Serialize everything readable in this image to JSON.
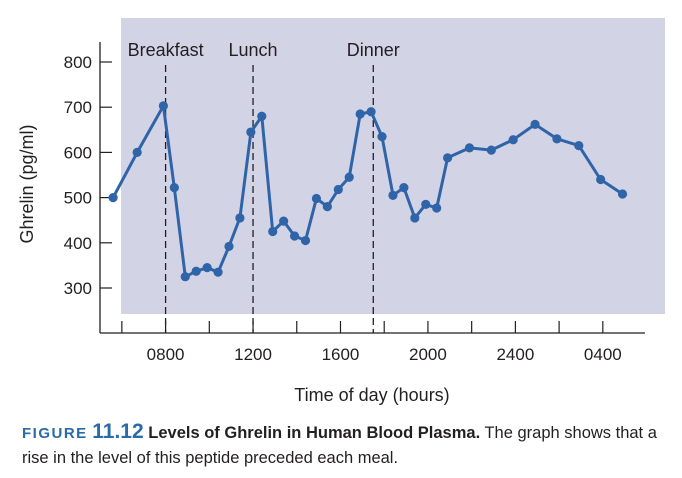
{
  "chart_data": {
    "type": "line",
    "xlabel": "Time of day (hours)",
    "ylabel": "Ghrelin (pg/ml)",
    "x_domain_hours": [
      5.0,
      29.7
    ],
    "ylim": [
      240,
      830
    ],
    "x_ticks": [
      {
        "hour": 8,
        "label": "0800"
      },
      {
        "hour": 12,
        "label": "1200"
      },
      {
        "hour": 16,
        "label": "1600"
      },
      {
        "hour": 20,
        "label": "2000"
      },
      {
        "hour": 24,
        "label": "2400"
      },
      {
        "hour": 28,
        "label": "0400"
      }
    ],
    "y_ticks": [
      300,
      400,
      500,
      600,
      700,
      800
    ],
    "plot_bg_ylim": [
      240,
      850
    ],
    "meals": [
      {
        "label": "Breakfast",
        "hour": 8
      },
      {
        "label": "Lunch",
        "hour": 12
      },
      {
        "label": "Dinner",
        "hour": 17.5
      }
    ],
    "series": [
      {
        "color": "#2f64a9",
        "points": [
          [
            5.6,
            500
          ],
          [
            6.7,
            600
          ],
          [
            7.9,
            703
          ],
          [
            8.4,
            522
          ],
          [
            8.9,
            325
          ],
          [
            9.4,
            337
          ],
          [
            9.9,
            345
          ],
          [
            10.4,
            335
          ],
          [
            10.9,
            392
          ],
          [
            11.4,
            455
          ],
          [
            11.9,
            645
          ],
          [
            12.4,
            680
          ],
          [
            12.9,
            425
          ],
          [
            13.4,
            448
          ],
          [
            13.9,
            415
          ],
          [
            14.4,
            405
          ],
          [
            14.9,
            498
          ],
          [
            15.4,
            480
          ],
          [
            15.9,
            518
          ],
          [
            16.4,
            545
          ],
          [
            16.9,
            685
          ],
          [
            17.4,
            690
          ],
          [
            17.9,
            635
          ],
          [
            18.4,
            505
          ],
          [
            18.9,
            522
          ],
          [
            19.4,
            455
          ],
          [
            19.9,
            485
          ],
          [
            20.4,
            477
          ],
          [
            20.9,
            588
          ],
          [
            21.9,
            610
          ],
          [
            22.9,
            605
          ],
          [
            23.9,
            628
          ],
          [
            24.9,
            662
          ],
          [
            25.9,
            630
          ],
          [
            26.9,
            615
          ],
          [
            27.9,
            540
          ],
          [
            28.9,
            508
          ]
        ]
      }
    ]
  },
  "caption": {
    "figure_word": "FIGURE",
    "figure_number": "11.12",
    "title": "Levels of Ghrelin in Human Blood Plasma.",
    "text": "The graph shows that a rise in the level of this peptide preceded each meal."
  },
  "colors": {
    "plot_background": "#d3d3e6",
    "line": "#2f64a9",
    "accent": "#2a6aa8"
  }
}
